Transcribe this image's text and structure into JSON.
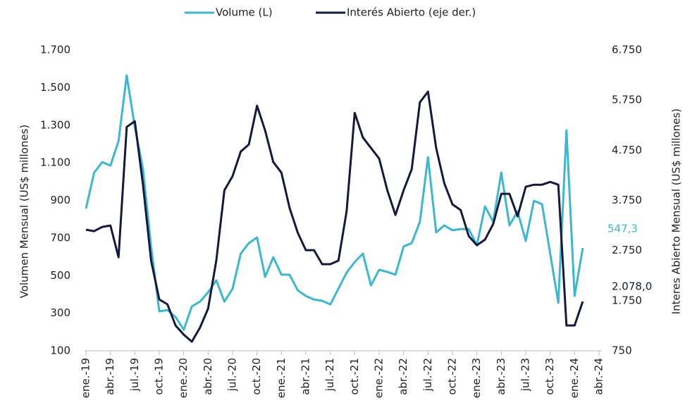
{
  "chart_data": {
    "type": "line",
    "y_label": "Volumen Mensual (US$ millones)",
    "y2_label": "Interes Abierto Mensual (US$ millones)",
    "categories": [
      "ene.-19",
      null,
      null,
      "abr.-19",
      null,
      null,
      "jul.-19",
      null,
      null,
      "oct.-19",
      null,
      null,
      "ene.-20",
      null,
      null,
      "abr.-20",
      null,
      null,
      "jul.-20",
      null,
      null,
      "oct.-20",
      null,
      null,
      "ene.-21",
      null,
      null,
      "abr.-21",
      null,
      null,
      "jul.-21",
      null,
      null,
      "oct.-21",
      null,
      null,
      "ene.-22",
      null,
      null,
      "abr.-22",
      null,
      null,
      "jul.-22",
      null,
      null,
      "oct.-22",
      null,
      null,
      "ene.-23",
      null,
      null,
      "abr.-23",
      null,
      null,
      "jul.-23",
      null,
      null,
      "oct.-23",
      null,
      null,
      "ene.-24",
      null,
      null,
      "abr.-24"
    ],
    "series": [
      {
        "name": "Volume (L)",
        "color": "#3bb8cf",
        "axis": "y",
        "values": [
          857,
          1048,
          1104,
          1085,
          1216,
          1565,
          1290,
          1067,
          655,
          310,
          317,
          280,
          212,
          336,
          362,
          411,
          475,
          362,
          430,
          617,
          673,
          703,
          493,
          598,
          505,
          505,
          422,
          392,
          373,
          366,
          347,
          430,
          516,
          572,
          617,
          448,
          531,
          520,
          505,
          655,
          673,
          786,
          1130,
          730,
          767,
          741,
          748,
          748,
          662,
          868,
          786,
          1048,
          767,
          842,
          685,
          898,
          880,
          617,
          355,
          1273,
          392,
          647,
          null,
          null
        ]
      },
      {
        "name": "Interés Abierto (eje der.)",
        "color": "#14193d",
        "axis": "y2",
        "values": [
          3166,
          3138,
          3222,
          3250,
          2618,
          5216,
          5329,
          4064,
          2548,
          1775,
          1677,
          1256,
          1073,
          933,
          1213,
          1593,
          2548,
          3952,
          4233,
          4725,
          4865,
          5638,
          5146,
          4514,
          4303,
          3601,
          3109,
          2758,
          2758,
          2478,
          2478,
          2548,
          3531,
          5497,
          5006,
          4795,
          4584,
          3952,
          3461,
          3952,
          4373,
          5708,
          5919,
          4795,
          4093,
          3671,
          3559,
          3039,
          2857,
          2969,
          3278,
          3882,
          3882,
          3433,
          4022,
          4064,
          4064,
          4120,
          4064,
          1256,
          1256,
          1733,
          null,
          null
        ]
      }
    ],
    "annotations": [
      {
        "text": "547,3",
        "color": "#3bb8cf"
      },
      {
        "text": "2.078,0",
        "color": "#14193d"
      }
    ],
    "ylim": [
      100,
      1700
    ],
    "yticks": [
      100,
      300,
      500,
      700,
      900,
      {
        "value": 1100,
        "label": "1.100"
      },
      {
        "value": 1300,
        "label": "1.300"
      },
      {
        "value": 1500,
        "label": "1.500"
      },
      {
        "value": 1700,
        "label": "1.700"
      }
    ],
    "y2lim": [
      750,
      6750
    ],
    "y2ticks": [
      750,
      {
        "value": 1750,
        "label": "1.750"
      },
      {
        "value": 2750,
        "label": "2.750"
      },
      {
        "value": 3750,
        "label": "3.750"
      },
      {
        "value": 4750,
        "label": "4.750"
      },
      {
        "value": 5750,
        "label": "5.750"
      },
      {
        "value": 6750,
        "label": "6.750"
      }
    ],
    "grid": false
  }
}
